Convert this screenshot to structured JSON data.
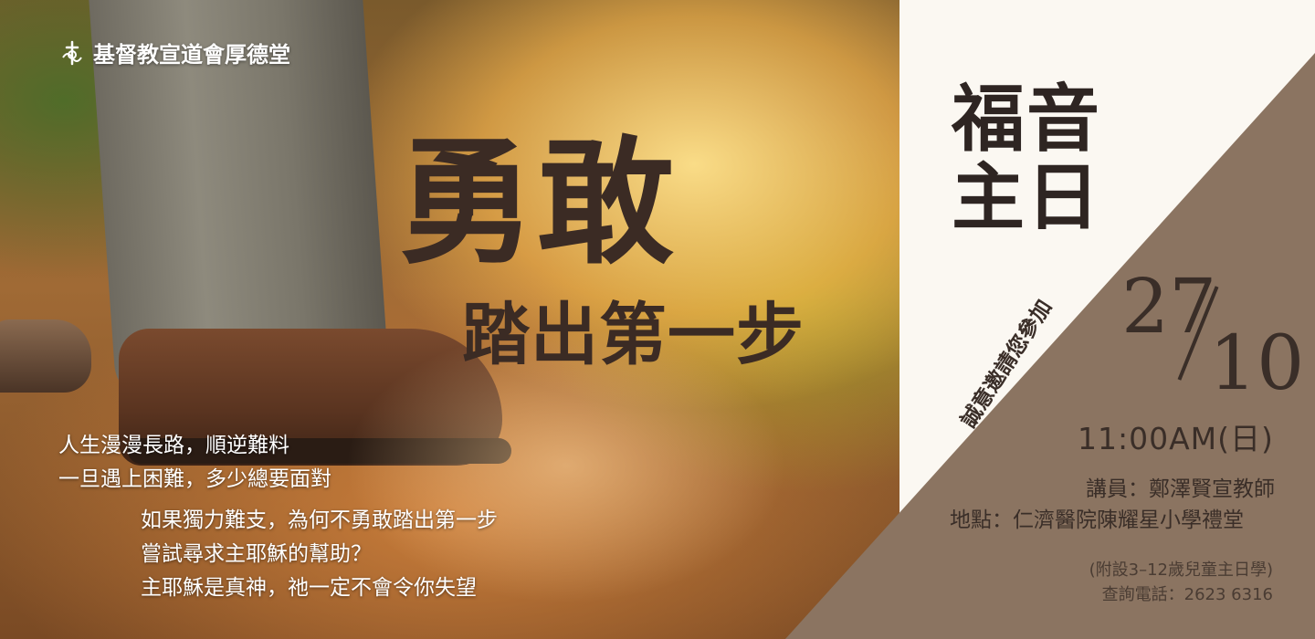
{
  "church_name": "基督教宣道會厚德堂",
  "headline": {
    "main": "勇敢",
    "sub": "踏出第一步"
  },
  "intro_lines": [
    "人生漫漫長路，順逆難料",
    "一旦遇上困難，多少總要面對"
  ],
  "message_lines": [
    "如果獨力難支，為何不勇敢踏出第一步",
    "嘗試尋求主耶穌的幫助？",
    "主耶穌是真神，祂一定不會令你失望"
  ],
  "event": {
    "title_line1": "福音",
    "title_line2": "主日",
    "invitation": "誠意邀請您參加",
    "day": "27",
    "month": "10",
    "time": "11:00AM(日)",
    "speaker": "講員：鄭澤賢宣教師",
    "venue": "地點：仁濟醫院陳耀星小學禮堂",
    "sunday_school": "(附設3–12歲兒童主日學)",
    "enquiry": "查詢電話：2623 6316"
  },
  "colors": {
    "brown_panel": "#8b7461",
    "cream_panel": "#fbf8f2",
    "title_text": "#3b2b24"
  },
  "icons": {
    "logo": "church-cross-logo-icon"
  }
}
